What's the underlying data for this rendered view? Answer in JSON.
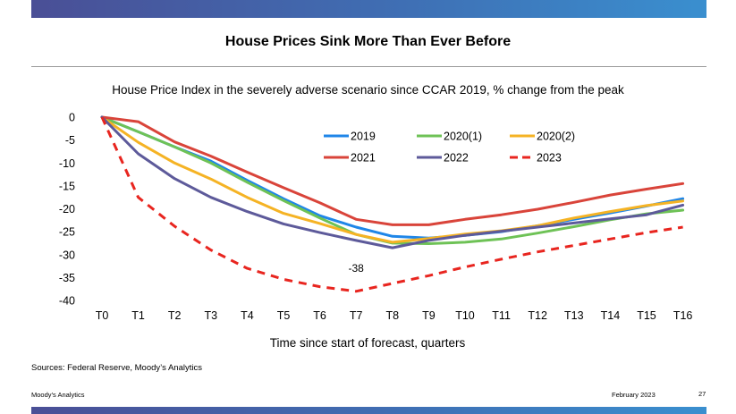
{
  "slide": {
    "title": "House Prices Sink More Than Ever Before",
    "sources": "Sources: Federal Reserve, Moody’s Analytics",
    "footer_left": "Moody’s Analytics",
    "footer_date": "February 2023",
    "page_number": "27"
  },
  "colors": {
    "brand_bar_start": "#4a4f96",
    "brand_bar_end": "#3a8fcf"
  },
  "chart_data": {
    "type": "line",
    "title": "House Price Index in the severely adverse scenario since CCAR 2019, % change from the peak",
    "xlabel": "Time since start of forecast, quarters",
    "ylabel": "",
    "categories": [
      "T0",
      "T1",
      "T2",
      "T3",
      "T4",
      "T5",
      "T6",
      "T7",
      "T8",
      "T9",
      "T10",
      "T11",
      "T12",
      "T13",
      "T14",
      "T15",
      "T16"
    ],
    "ylim": [
      -40,
      0
    ],
    "yticks": [
      0,
      -5,
      -10,
      -15,
      -20,
      -25,
      -30,
      -35,
      -40
    ],
    "grid": false,
    "legend_position": "top-right",
    "series": [
      {
        "name": "2019",
        "color": "#1f86e8",
        "dashed": false,
        "values": [
          0,
          -3.2,
          -6.5,
          -9.6,
          -13.8,
          -17.8,
          -21.5,
          -24,
          -26,
          -26.4,
          -25.8,
          -25,
          -23.7,
          -22.3,
          -20.9,
          -19.4,
          -17.8
        ]
      },
      {
        "name": "2020(1)",
        "color": "#6ec256",
        "dashed": false,
        "values": [
          0,
          -3.2,
          -6.5,
          -10,
          -14.2,
          -18.2,
          -22,
          -25.6,
          -27.5,
          -27.6,
          -27.3,
          -26.6,
          -25.3,
          -23.9,
          -22.4,
          -21.1,
          -20.3
        ]
      },
      {
        "name": "2020(2)",
        "color": "#f5b324",
        "dashed": false,
        "values": [
          0,
          -5.5,
          -10,
          -13.5,
          -17.5,
          -21,
          -23.2,
          -25.6,
          -27.3,
          -26.5,
          -25.5,
          -24.8,
          -23.7,
          -22,
          -20.6,
          -19.3,
          -18.3
        ]
      },
      {
        "name": "2021",
        "color": "#d9443a",
        "dashed": false,
        "values": [
          0,
          -1,
          -5.4,
          -8.5,
          -12,
          -15.4,
          -18.7,
          -22.3,
          -23.5,
          -23.5,
          -22.3,
          -21.3,
          -20.1,
          -18.6,
          -17,
          -15.7,
          -14.5
        ]
      },
      {
        "name": "2022",
        "color": "#5d5a9a",
        "dashed": false,
        "values": [
          0,
          -8,
          -13.4,
          -17.5,
          -20.6,
          -23.3,
          -25.2,
          -26.9,
          -28.5,
          -26.9,
          -25.8,
          -24.9,
          -24,
          -23.1,
          -22.2,
          -21.3,
          -19.2
        ]
      },
      {
        "name": "2023",
        "color": "#e8251f",
        "dashed": true,
        "values": [
          0,
          -17.5,
          -23.8,
          -29,
          -33,
          -35.4,
          -37,
          -38,
          -36.3,
          -34.6,
          -32.7,
          -31,
          -29.4,
          -28,
          -26.6,
          -25.2,
          -24
        ]
      }
    ],
    "annotations": [
      {
        "series": "2023",
        "x": "T7",
        "y": -38,
        "text": "-38"
      }
    ]
  }
}
